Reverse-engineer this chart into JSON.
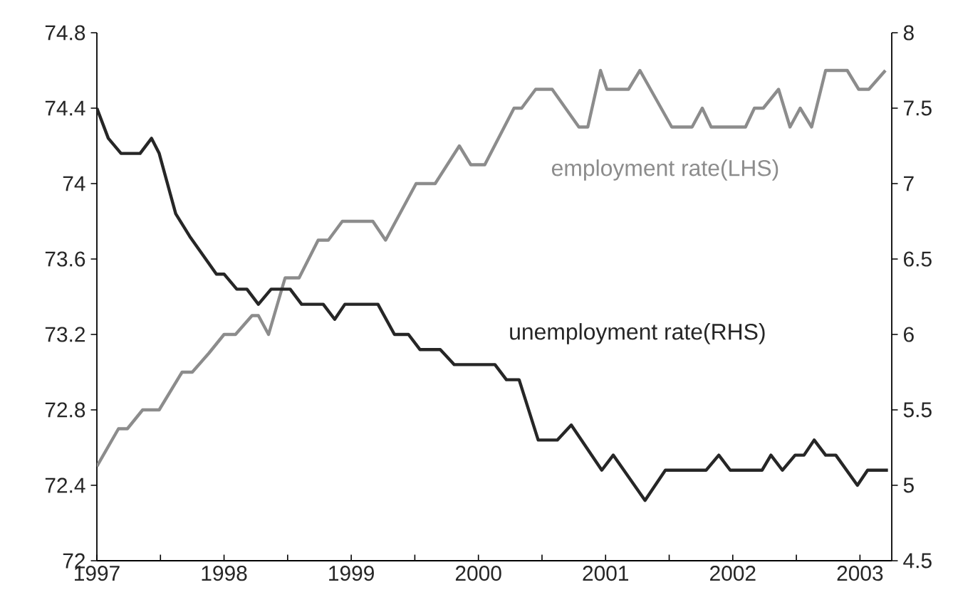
{
  "chart_data": {
    "type": "line",
    "xlim": [
      1997,
      2003.25
    ],
    "xticks": [
      1997,
      {
        "value": 1997.5,
        "label": null
      },
      1998,
      {
        "value": 1998.5,
        "label": null
      },
      1999,
      {
        "value": 1999.5,
        "label": null
      },
      2000,
      {
        "value": 2000.5,
        "label": null
      },
      2001,
      {
        "value": 2001.5,
        "label": null
      },
      2002,
      {
        "value": 2002.5,
        "label": null
      },
      2003
    ],
    "ylim": [
      72,
      74.8
    ],
    "yticks": [
      72,
      72.4,
      72.8,
      73.2,
      73.6,
      74,
      74.4,
      74.8
    ],
    "y2lim": [
      4.5,
      8
    ],
    "y2ticks": [
      4.5,
      5,
      5.5,
      6,
      6.5,
      7,
      7.5,
      8
    ],
    "series": [
      {
        "name": "employment rate(LHS)",
        "color": "#8c8c8c",
        "x": [
          1997.0,
          1997.17,
          1997.24,
          1997.36,
          1997.49,
          1997.67,
          1997.75,
          1997.88,
          1998.0,
          1998.09,
          1998.22,
          1998.27,
          1998.35,
          1998.48,
          1998.59,
          1998.74,
          1998.82,
          1998.93,
          1999.17,
          1999.27,
          1999.51,
          1999.66,
          1999.85,
          1999.94,
          2000.05,
          2000.28,
          2000.34,
          2000.45,
          2000.58,
          2000.79,
          2000.86,
          2000.96,
          2001.01,
          2001.18,
          2001.27,
          2001.52,
          2001.68,
          2001.76,
          2001.83,
          2002.1,
          2002.17,
          2002.24,
          2002.36,
          2002.45,
          2002.53,
          2002.62,
          2002.73,
          2002.9,
          2002.99,
          2003.07,
          2003.2
        ],
        "values": [
          72.5,
          72.7,
          72.7,
          72.8,
          72.8,
          73.0,
          73.0,
          73.1,
          73.2,
          73.2,
          73.3,
          73.3,
          73.2,
          73.5,
          73.5,
          73.7,
          73.7,
          73.8,
          73.8,
          73.7,
          74.0,
          74.0,
          74.2,
          74.1,
          74.1,
          74.4,
          74.4,
          74.5,
          74.5,
          74.3,
          74.3,
          74.6,
          74.5,
          74.5,
          74.6,
          74.3,
          74.3,
          74.4,
          74.3,
          74.3,
          74.4,
          74.4,
          74.5,
          74.3,
          74.4,
          74.3,
          74.6,
          74.6,
          74.5,
          74.5,
          74.6
        ]
      },
      {
        "name": "unemployment rate(RHS)",
        "color": "#262626",
        "axis": "y2",
        "x": [
          1997.0,
          1997.09,
          1997.19,
          1997.34,
          1997.43,
          1997.49,
          1997.62,
          1997.73,
          1997.94,
          1998.0,
          1998.1,
          1998.18,
          1998.27,
          1998.37,
          1998.52,
          1998.61,
          1998.78,
          1998.87,
          1998.95,
          1999.21,
          1999.34,
          1999.45,
          1999.54,
          1999.7,
          1999.81,
          2000.13,
          2000.22,
          2000.32,
          2000.47,
          2000.62,
          2000.73,
          2000.97,
          2001.06,
          2001.31,
          2001.47,
          2001.79,
          2001.89,
          2001.98,
          2002.23,
          2002.3,
          2002.39,
          2002.49,
          2002.56,
          2002.64,
          2002.73,
          2002.81,
          2002.98,
          2003.06,
          2003.22
        ],
        "values": [
          7.5,
          7.3,
          7.2,
          7.2,
          7.3,
          7.2,
          6.8,
          6.65,
          6.4,
          6.4,
          6.3,
          6.3,
          6.2,
          6.3,
          6.3,
          6.2,
          6.2,
          6.1,
          6.2,
          6.2,
          6.0,
          6.0,
          5.9,
          5.9,
          5.8,
          5.8,
          5.7,
          5.7,
          5.3,
          5.3,
          5.4,
          5.1,
          5.2,
          4.9,
          5.1,
          5.1,
          5.2,
          5.1,
          5.1,
          5.2,
          5.1,
          5.2,
          5.2,
          5.3,
          5.2,
          5.2,
          5.0,
          5.1,
          5.1
        ]
      }
    ]
  }
}
